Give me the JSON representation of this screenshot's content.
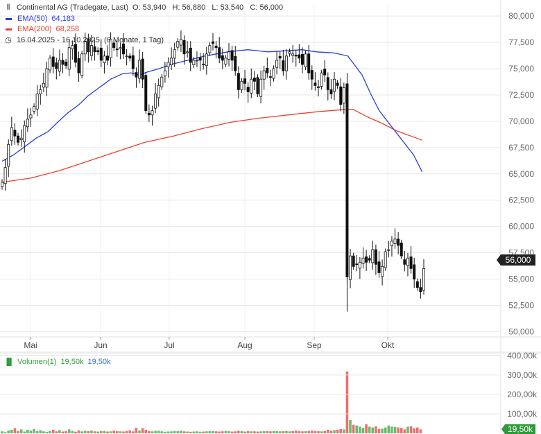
{
  "legend": {
    "title": "Continental AG (Tradegate, Last)",
    "ohlc": "O: 53,940   H: 56,880   L: 53,540   C: 56,000",
    "ema50_label": "EMA(50)",
    "ema50_value": "64,183",
    "ema200_label": "EMA(200)",
    "ema200_value": "68,258",
    "range": "16.04.2025 - 16.10.2025, (6 Monate, 1 Tag)"
  },
  "volume_legend": {
    "label": "Volumen(1)",
    "value1": "19,50k",
    "value2": "19,50k"
  },
  "price_tag": "56,000",
  "volume_tag": "19,50k",
  "colors": {
    "ema50": "#2a3fd8",
    "ema200": "#e8412f",
    "candle": "#111111",
    "volume_up": "#4caf50",
    "volume_down": "#ef5350",
    "grid": "#e6e6e6"
  },
  "icons": {
    "chart": "candlestick-chart-icon",
    "clock": "clock-icon",
    "volume": "bar-chart-icon"
  },
  "chart_data": {
    "type": "candlestick",
    "x_axis": {
      "ticks": [
        "Mai",
        "Jun",
        "Jul",
        "Aug",
        "Sep",
        "Okt"
      ]
    },
    "y_axis": {
      "ticks": [
        50,
        52.5,
        55,
        57.5,
        60,
        62.5,
        65,
        67.5,
        70,
        72.5,
        75,
        77.5,
        80
      ],
      "tick_labels": [
        "50,000",
        "52,500",
        "55,000",
        "57,500",
        "60,000",
        "62,500",
        "65,000",
        "67,500",
        "70,000",
        "72,500",
        "75,000",
        "77,500",
        "80,000"
      ],
      "ylim": [
        49.5,
        81
      ]
    },
    "date_range": [
      "2025-04-16",
      "2025-10-16"
    ],
    "last_candle": {
      "open": 53.94,
      "high": 56.88,
      "low": 53.54,
      "close": 56.0
    },
    "closes": [
      64.2,
      65.6,
      67.8,
      69.4,
      68.6,
      68.0,
      68.4,
      69.6,
      70.2,
      70.6,
      71.4,
      72.6,
      73.0,
      73.6,
      75.0,
      76.0,
      75.2,
      75.0,
      75.8,
      75.4,
      75.3,
      77.0,
      77.2,
      75.6,
      74.6,
      76.4,
      77.6,
      76.6,
      77.2,
      76.6,
      76.6,
      75.8,
      76.2,
      75.8,
      77.8,
      77.0,
      76.8,
      77.0,
      76.4,
      76.2,
      76.0,
      75.0,
      74.2,
      75.8,
      74.0,
      71.0,
      70.6,
      71.0,
      72.6,
      73.4,
      74.2,
      74.8,
      75.6,
      76.0,
      76.8,
      77.6,
      77.8,
      76.4,
      76.6,
      75.6,
      75.8,
      75.8,
      75.8,
      75.4,
      76.4,
      77.2,
      77.4,
      77.0,
      76.0,
      75.8,
      76.0,
      76.6,
      75.8,
      74.8,
      73.0,
      73.8,
      73.6,
      72.8,
      74.0,
      73.8,
      72.6,
      74.0,
      74.8,
      74.6,
      74.2,
      75.0,
      75.8,
      76.0,
      74.8,
      76.2,
      76.6,
      76.4,
      76.2,
      76.0,
      75.4,
      76.4,
      74.6,
      74.0,
      73.4,
      73.2,
      74.6,
      74.4,
      73.0,
      72.6,
      74.0,
      73.4,
      71.6,
      73.2,
      55.2,
      57.2,
      56.2,
      56.4,
      56.6,
      57.0,
      56.6,
      56.8,
      57.8,
      56.4,
      55.6,
      56.2,
      57.6,
      57.8,
      58.6,
      58.8,
      58.2,
      57.2,
      56.4,
      57.0,
      56.0,
      55.0,
      54.2,
      53.8,
      56.0
    ],
    "ema50": [
      [
        0.0,
        66.2
      ],
      [
        0.08,
        66.8
      ],
      [
        0.16,
        67.6
      ],
      [
        0.24,
        68.4
      ],
      [
        0.32,
        69.0
      ],
      [
        0.38,
        69.8
      ],
      [
        0.46,
        70.8
      ],
      [
        0.54,
        71.6
      ],
      [
        0.6,
        72.4
      ],
      [
        0.64,
        72.8
      ],
      [
        0.7,
        73.4
      ],
      [
        0.76,
        74.0
      ],
      [
        0.84,
        74.5
      ],
      [
        0.9,
        74.6
      ],
      [
        0.96,
        74.4
      ],
      [
        1.02,
        74.7
      ],
      [
        1.1,
        75.0
      ],
      [
        1.18,
        75.4
      ],
      [
        1.3,
        75.8
      ],
      [
        1.42,
        76.2
      ],
      [
        1.5,
        76.4
      ],
      [
        1.58,
        76.6
      ],
      [
        1.72,
        76.8
      ],
      [
        1.86,
        76.6
      ],
      [
        1.98,
        76.7
      ],
      [
        2.1,
        76.8
      ],
      [
        2.2,
        76.6
      ],
      [
        2.32,
        76.5
      ],
      [
        2.42,
        76.2
      ],
      [
        2.52,
        74.4
      ],
      [
        2.58,
        72.6
      ],
      [
        2.64,
        71.0
      ],
      [
        2.72,
        69.6
      ],
      [
        2.8,
        68.2
      ],
      [
        2.88,
        66.8
      ],
      [
        2.94,
        65.2
      ]
    ],
    "ema200": [
      [
        0.0,
        64.2
      ],
      [
        0.2,
        64.6
      ],
      [
        0.4,
        65.3
      ],
      [
        0.6,
        66.2
      ],
      [
        0.8,
        67.1
      ],
      [
        1.0,
        68.0
      ],
      [
        1.2,
        68.6
      ],
      [
        1.4,
        69.3
      ],
      [
        1.6,
        69.9
      ],
      [
        1.8,
        70.3
      ],
      [
        2.0,
        70.6
      ],
      [
        2.2,
        70.9
      ],
      [
        2.38,
        71.1
      ],
      [
        2.46,
        71.1
      ],
      [
        2.56,
        70.4
      ],
      [
        2.66,
        69.8
      ],
      [
        2.76,
        69.1
      ],
      [
        2.86,
        68.6
      ],
      [
        2.94,
        68.2
      ]
    ],
    "volume": {
      "axis_ticks": [
        "100,00k",
        "200,00k",
        "300,00k",
        "400,00k"
      ],
      "values": [
        10,
        6,
        14,
        18,
        26,
        12,
        20,
        9,
        18,
        14,
        22,
        12,
        16,
        10,
        8,
        12,
        18,
        10,
        16,
        9,
        11,
        20,
        12,
        8,
        15,
        10,
        13,
        11,
        14,
        10,
        9,
        12,
        12,
        9,
        10,
        14,
        11,
        10,
        9,
        12,
        15,
        10,
        28,
        14,
        26,
        18,
        12,
        10,
        12,
        14,
        10,
        8,
        9,
        10,
        12,
        11,
        14,
        10,
        9,
        8,
        9,
        10,
        8,
        9,
        10,
        11,
        12,
        10,
        9,
        10,
        12,
        11,
        9,
        10,
        13,
        12,
        9,
        11,
        10,
        10,
        9,
        10,
        11,
        12,
        10,
        11,
        12,
        10,
        11,
        12,
        10,
        11,
        14,
        12,
        10,
        11,
        12,
        14,
        12,
        11,
        10,
        12,
        18,
        14,
        16,
        18,
        22,
        20,
        318,
        68,
        44,
        40,
        34,
        28,
        46,
        34,
        30,
        36,
        22,
        24,
        30,
        40,
        34,
        32,
        30,
        28,
        20,
        34,
        36,
        26,
        30,
        20
      ]
    }
  }
}
